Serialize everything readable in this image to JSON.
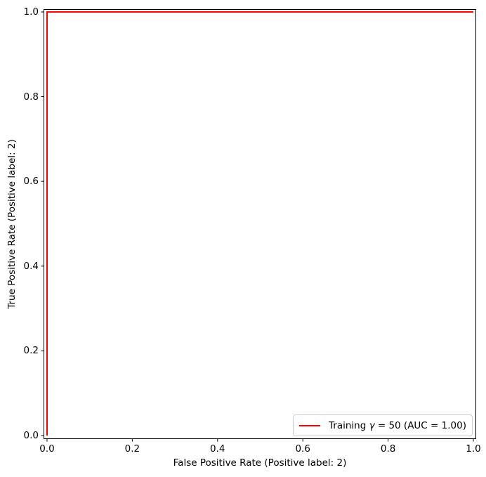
{
  "figure": {
    "background": "#ffffff",
    "spine_color": "#000000"
  },
  "chart_data": {
    "type": "line",
    "title": "",
    "xlabel": "False Positive Rate (Positive label: 2)",
    "ylabel": "True Positive Rate (Positive label: 2)",
    "xlim": [
      0.0,
      1.0
    ],
    "ylim": [
      0.0,
      1.0
    ],
    "xticks": [
      0.0,
      0.2,
      0.4,
      0.6,
      0.8,
      1.0
    ],
    "yticks": [
      0.0,
      0.2,
      0.4,
      0.6,
      0.8,
      1.0
    ],
    "xtick_labels": [
      "0.0",
      "0.2",
      "0.4",
      "0.6",
      "0.8",
      "1.0"
    ],
    "ytick_labels": [
      "0.0",
      "0.2",
      "0.4",
      "0.6",
      "0.8",
      "1.0"
    ],
    "grid": false,
    "legend_position": "lower right",
    "series": [
      {
        "name": "Training γ = 50 (AUC = 1.00)",
        "color": "#ff0000",
        "linewidth": 2,
        "auc": "1.00",
        "points": [
          [
            0.0,
            0.0
          ],
          [
            0.0,
            1.0
          ],
          [
            1.0,
            1.0
          ]
        ]
      }
    ]
  },
  "legend_text": {
    "prefix": "Training ",
    "gamma": "γ",
    "rest": " = 50 (AUC = 1.00)"
  }
}
